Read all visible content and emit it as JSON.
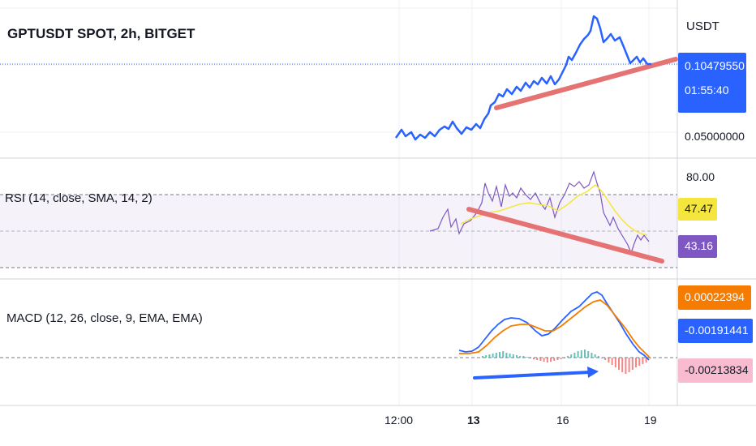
{
  "chart": {
    "title": "GPTUSDT SPOT, 2h, BITGET",
    "currency": "USDT",
    "last_price": "0.10479550",
    "countdown": "01:55:40",
    "axis_price_label": "0.05000000",
    "line_color": "#2962ff",
    "trend_color": "#e57373"
  },
  "rsi": {
    "title": "RSI (14, close, SMA, 14, 2)",
    "upper_level": "80.00",
    "ma_value": "47.47",
    "rsi_value": "43.16",
    "ma_color": "#f5e63d",
    "rsi_color": "#7e57c2"
  },
  "macd": {
    "title": "MACD (12, 26, close, 9, EMA, EMA)",
    "signal_value": "0.00022394",
    "macd_value": "-0.00191441",
    "hist_value": "-0.00213834",
    "signal_color": "#f57c00",
    "macd_color": "#2962ff",
    "hist_color": "#f8bbd0"
  },
  "time_axis": {
    "labels": [
      "12:00",
      "13",
      "16",
      "19"
    ],
    "bold_label": "13"
  }
}
